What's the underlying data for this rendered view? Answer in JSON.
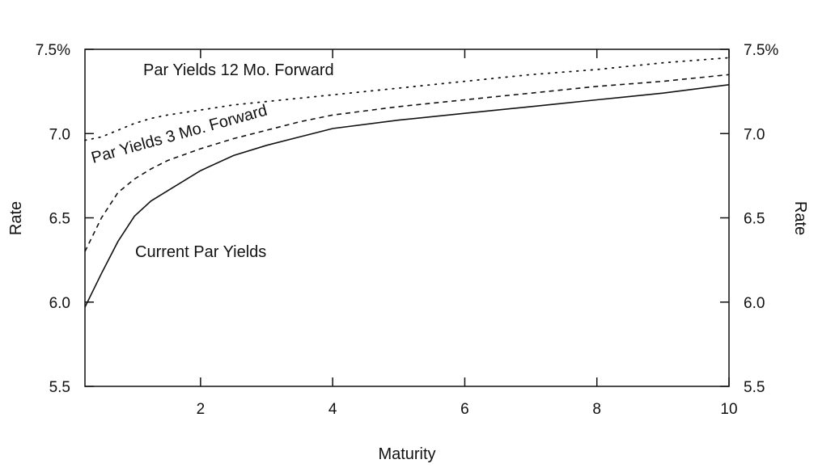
{
  "chart_data": {
    "type": "line",
    "title": "",
    "xlabel": "Maturity",
    "ylabel_left": "Rate",
    "ylabel_right": "Rate",
    "xlim": [
      0.25,
      10
    ],
    "ylim": [
      5.5,
      7.5
    ],
    "grid": false,
    "legend": "none",
    "x_ticks": [
      {
        "value": 2,
        "label": "2"
      },
      {
        "value": 4,
        "label": "4"
      },
      {
        "value": 6,
        "label": "6"
      },
      {
        "value": 8,
        "label": "8"
      },
      {
        "value": 10,
        "label": "10"
      }
    ],
    "y_ticks": [
      {
        "value": 5.5,
        "label": "5.5"
      },
      {
        "value": 6.0,
        "label": "6.0"
      },
      {
        "value": 6.5,
        "label": "6.5"
      },
      {
        "value": 7.0,
        "label": "7.0"
      },
      {
        "value": 7.5,
        "label": "7.5%"
      }
    ],
    "series": [
      {
        "name": "Par Yields 12 Mo. Forward",
        "dash": "dotted",
        "x": [
          0.25,
          0.5,
          0.75,
          1,
          1.25,
          1.5,
          2,
          2.5,
          3,
          3.5,
          4,
          5,
          6,
          7,
          8,
          9,
          10
        ],
        "y": [
          6.96,
          6.98,
          7.02,
          7.06,
          7.09,
          7.11,
          7.14,
          7.17,
          7.19,
          7.21,
          7.23,
          7.27,
          7.31,
          7.35,
          7.38,
          7.42,
          7.45
        ]
      },
      {
        "name": "Par Yields 3 Mo. Forward",
        "dash": "dashed",
        "x": [
          0.25,
          0.5,
          0.75,
          1,
          1.25,
          1.5,
          2,
          2.5,
          3,
          3.5,
          4,
          5,
          6,
          7,
          8,
          9,
          10
        ],
        "y": [
          6.3,
          6.5,
          6.65,
          6.73,
          6.79,
          6.84,
          6.91,
          6.97,
          7.02,
          7.07,
          7.11,
          7.16,
          7.2,
          7.24,
          7.28,
          7.31,
          7.35
        ]
      },
      {
        "name": "Current Par Yields",
        "dash": "solid",
        "x": [
          0.25,
          0.5,
          0.75,
          1,
          1.25,
          1.5,
          2,
          2.5,
          3,
          3.5,
          4,
          5,
          6,
          7,
          8,
          9,
          10
        ],
        "y": [
          5.97,
          6.17,
          6.36,
          6.51,
          6.6,
          6.66,
          6.78,
          6.87,
          6.93,
          6.98,
          7.03,
          7.08,
          7.12,
          7.16,
          7.2,
          7.24,
          7.29
        ]
      }
    ],
    "annotations": [
      {
        "text": "Par Yields 12 Mo. Forward",
        "series": 0
      },
      {
        "text": "Par Yields 3 Mo. Forward",
        "series": 1
      },
      {
        "text": "Current Par Yields",
        "series": 2
      }
    ]
  }
}
